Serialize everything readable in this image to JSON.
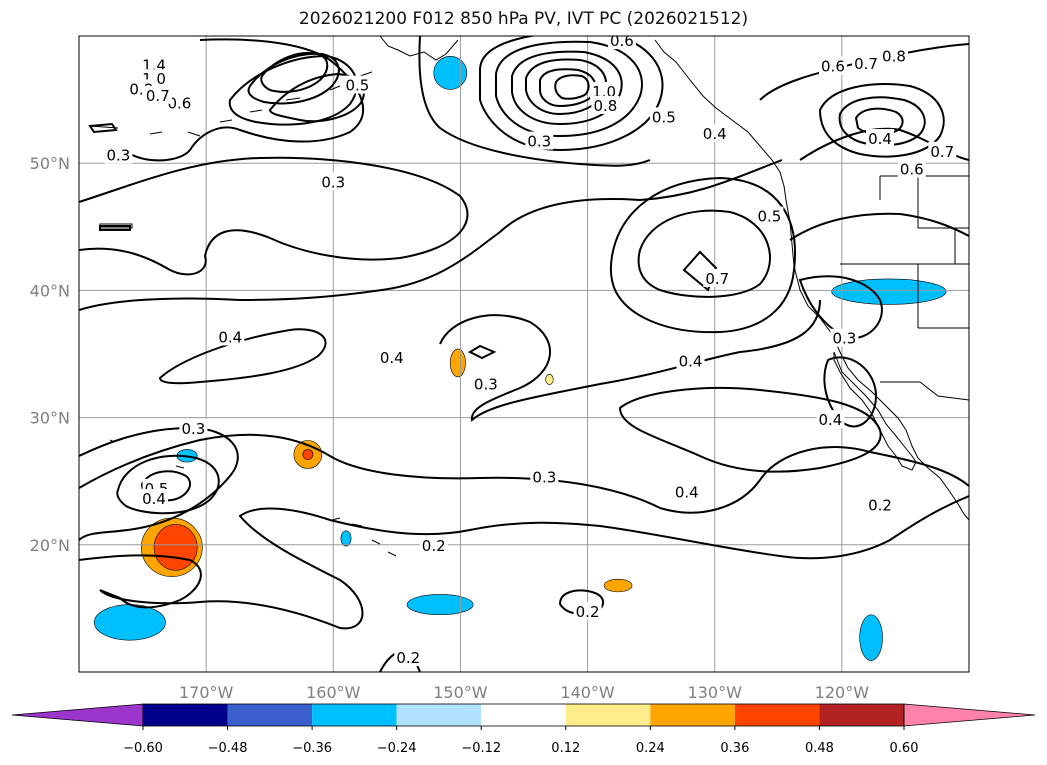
{
  "title": "2026021200 F012 850 hPa PV, IVT PC (2026021512)",
  "map": {
    "lon_min": -180,
    "lon_max": -110,
    "lat_min": 10,
    "lat_max": 60,
    "gridlines": true,
    "lon_ticks": [
      -170,
      -160,
      -150,
      -140,
      -130,
      -120
    ],
    "lat_ticks": [
      20,
      30,
      40,
      50
    ],
    "lon_labels": [
      "170°W",
      "160°W",
      "150°W",
      "140°W",
      "130°W",
      "120°W"
    ],
    "lat_labels": [
      "20°N",
      "30°N",
      "40°N",
      "50°N"
    ]
  },
  "pv_contour_labels": [
    {
      "text": "1.4",
      "lon": -174.1,
      "lat": 57.7
    },
    {
      "text": "1.0",
      "lon": -174.1,
      "lat": 56.6
    },
    {
      "text": "0.8",
      "lon": -175.1,
      "lat": 55.8
    },
    {
      "text": "0.6",
      "lon": -172.1,
      "lat": 54.7
    },
    {
      "text": "0.7",
      "lon": -173.8,
      "lat": 55.3
    },
    {
      "text": "0.5",
      "lon": -158.1,
      "lat": 56.1
    },
    {
      "text": "0.3",
      "lon": -176.9,
      "lat": 50.6
    },
    {
      "text": "0.3",
      "lon": -160.0,
      "lat": 48.5
    },
    {
      "text": "0.6",
      "lon": -137.3,
      "lat": 59.6
    },
    {
      "text": "1.0",
      "lon": -138.7,
      "lat": 55.6
    },
    {
      "text": "0.8",
      "lon": -138.6,
      "lat": 54.5
    },
    {
      "text": "0.5",
      "lon": -134.0,
      "lat": 53.6
    },
    {
      "text": "0.3",
      "lon": -143.8,
      "lat": 51.7
    },
    {
      "text": "0.4",
      "lon": -130.0,
      "lat": 52.3
    },
    {
      "text": "0.6",
      "lon": -120.7,
      "lat": 57.6
    },
    {
      "text": "0.7",
      "lon": -118.1,
      "lat": 57.8
    },
    {
      "text": "0.8",
      "lon": -115.9,
      "lat": 58.4
    },
    {
      "text": "0.4",
      "lon": -117.0,
      "lat": 51.9
    },
    {
      "text": "0.7",
      "lon": -112.1,
      "lat": 50.9
    },
    {
      "text": "0.6",
      "lon": -114.5,
      "lat": 49.5
    },
    {
      "text": "0.5",
      "lon": -125.7,
      "lat": 45.8
    },
    {
      "text": "0.7",
      "lon": -129.8,
      "lat": 40.9
    },
    {
      "text": "0.4",
      "lon": -168.1,
      "lat": 36.3
    },
    {
      "text": "0.4",
      "lon": -155.4,
      "lat": 34.7
    },
    {
      "text": "0.3",
      "lon": -148.0,
      "lat": 32.6
    },
    {
      "text": "0.4",
      "lon": -131.9,
      "lat": 34.4
    },
    {
      "text": "0.3",
      "lon": -119.8,
      "lat": 36.2
    },
    {
      "text": "0.4",
      "lon": -120.9,
      "lat": 29.8
    },
    {
      "text": "0.3",
      "lon": -171.0,
      "lat": 29.1
    },
    {
      "text": "0.5",
      "lon": -173.9,
      "lat": 24.4
    },
    {
      "text": "0.4",
      "lon": -174.1,
      "lat": 23.6
    },
    {
      "text": "0.3",
      "lon": -143.4,
      "lat": 25.3
    },
    {
      "text": "0.2",
      "lon": -152.1,
      "lat": 19.9
    },
    {
      "text": "0.4",
      "lon": -132.2,
      "lat": 24.1
    },
    {
      "text": "0.2",
      "lon": -117.0,
      "lat": 23.1
    },
    {
      "text": "0.2",
      "lon": -140.0,
      "lat": 14.7
    },
    {
      "text": "0.2",
      "lon": -154.1,
      "lat": 11.1
    }
  ],
  "colorbar": {
    "ticks": [
      "−0.60",
      "−0.48",
      "−0.36",
      "−0.24",
      "−0.12",
      "0.12",
      "0.24",
      "0.36",
      "0.48",
      "0.60"
    ],
    "colors": [
      "#9b35cc",
      "#00008b",
      "#3a5fcd",
      "#00bfff",
      "#b0e2ff",
      "#ffffff",
      "#ffec8b",
      "#ffa500",
      "#ff4500",
      "#b22222",
      "#ff82ab"
    ],
    "extend": "both"
  },
  "ivt_shading": [
    {
      "color": "#00bfff",
      "lon": -150.8,
      "lat": 57.1,
      "rx": 1.3,
      "ry": 1.3
    },
    {
      "color": "#00bfff",
      "lon": -116.3,
      "lat": 39.9,
      "rx": 4.5,
      "ry": 1.0
    },
    {
      "color": "#00bfff",
      "lon": -151.6,
      "lat": 15.3,
      "rx": 2.6,
      "ry": 0.8
    },
    {
      "color": "#3a5fcd",
      "lon": -175.7,
      "lat": 13.7,
      "rx": 1.3,
      "ry": 1.0
    },
    {
      "color": "#00bfff",
      "lon": -176.0,
      "lat": 13.9,
      "rx": 2.8,
      "ry": 1.4
    },
    {
      "color": "#00bfff",
      "lon": -117.7,
      "lat": 12.7,
      "rx": 0.9,
      "ry": 1.8
    },
    {
      "color": "#00bfff",
      "lon": -171.5,
      "lat": 27.0,
      "rx": 0.8,
      "ry": 0.5
    },
    {
      "color": "#00bfff",
      "lon": -159.0,
      "lat": 20.5,
      "rx": 0.4,
      "ry": 0.6
    },
    {
      "color": "#ffa500",
      "lon": -150.2,
      "lat": 34.3,
      "rx": 0.6,
      "ry": 1.1
    },
    {
      "color": "#ffa500",
      "lon": -162.0,
      "lat": 27.1,
      "rx": 1.1,
      "ry": 1.1
    },
    {
      "color": "#ff4500",
      "lon": -162.0,
      "lat": 27.1,
      "rx": 0.4,
      "ry": 0.4
    },
    {
      "color": "#ffa500",
      "lon": -172.7,
      "lat": 19.8,
      "rx": 2.4,
      "ry": 2.3
    },
    {
      "color": "#ff4500",
      "lon": -172.4,
      "lat": 19.8,
      "rx": 1.7,
      "ry": 1.8
    },
    {
      "color": "#ffa500",
      "lon": -137.6,
      "lat": 16.8,
      "rx": 1.1,
      "ry": 0.5
    },
    {
      "color": "#ffec8b",
      "lon": -143.0,
      "lat": 33.0,
      "rx": 0.3,
      "ry": 0.4
    }
  ]
}
